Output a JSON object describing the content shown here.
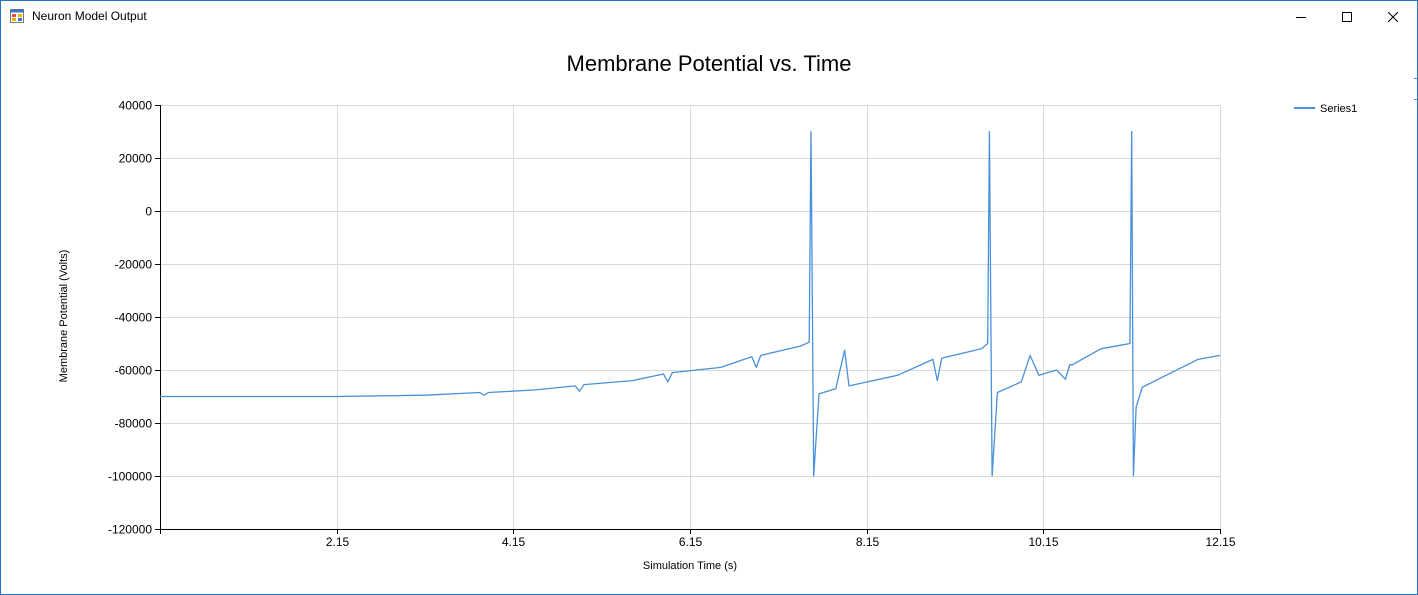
{
  "window": {
    "title": "Neuron Model Output",
    "icon": "winforms-app-icon",
    "controls": {
      "minimize": "minimize-icon",
      "maximize": "maximize-icon",
      "close": "close-icon"
    },
    "accent": "#1f76c9"
  },
  "chart_data": {
    "type": "line",
    "title": "Membrane Potential vs. Time",
    "xlabel": "Simulation Time (s)",
    "ylabel": "Membrane Potential (Volts)",
    "xlim": [
      0.15,
      12.15
    ],
    "ylim": [
      -120000,
      40000
    ],
    "xticks": [
      2.15,
      4.15,
      6.15,
      8.15,
      10.15,
      12.15
    ],
    "xtick_labels": [
      "2.15",
      "4.15",
      "6.15",
      "8.15",
      "10.15",
      "12.15"
    ],
    "yticks": [
      40000,
      20000,
      0,
      -20000,
      -40000,
      -60000,
      -80000,
      -100000,
      -120000
    ],
    "ytick_labels": [
      "40000",
      "20000",
      "0",
      "-20000",
      "-40000",
      "-60000",
      "-80000",
      "-100000",
      "-120000"
    ],
    "grid": true,
    "legend_position": "top-right",
    "series": [
      {
        "name": "Series1",
        "color": "#4a90d9",
        "x": [
          0.15,
          1.15,
          2.15,
          3.15,
          3.77,
          3.82,
          3.87,
          4.4,
          4.85,
          4.9,
          4.95,
          5.5,
          5.85,
          5.9,
          5.95,
          6.5,
          6.85,
          6.9,
          6.95,
          7.4,
          7.5,
          7.52,
          7.55,
          7.61,
          7.8,
          7.9,
          7.95,
          8.5,
          8.9,
          8.95,
          9.0,
          9.45,
          9.52,
          9.54,
          9.57,
          9.63,
          9.9,
          10.0,
          10.1,
          10.3,
          10.4,
          10.45,
          10.48,
          10.8,
          11.05,
          11.13,
          11.15,
          11.17,
          11.2,
          11.27,
          11.9,
          12.15
        ],
        "y": [
          -70000,
          -70000,
          -70000,
          -69500,
          -68500,
          -69500,
          -68500,
          -67500,
          -66000,
          -68000,
          -65500,
          -64000,
          -61500,
          -64500,
          -61000,
          -59000,
          -55000,
          -59000,
          -54500,
          -51000,
          -49500,
          30000,
          -100000,
          -69000,
          -67000,
          -52500,
          -66000,
          -62000,
          -56000,
          -64000,
          -55500,
          -52000,
          -50000,
          30000,
          -100000,
          -68500,
          -64500,
          -54500,
          -62000,
          -60000,
          -63500,
          -58000,
          -58000,
          -52000,
          -50500,
          -50000,
          30000,
          -100000,
          -74000,
          -66500,
          -56000,
          -54500
        ]
      }
    ]
  }
}
